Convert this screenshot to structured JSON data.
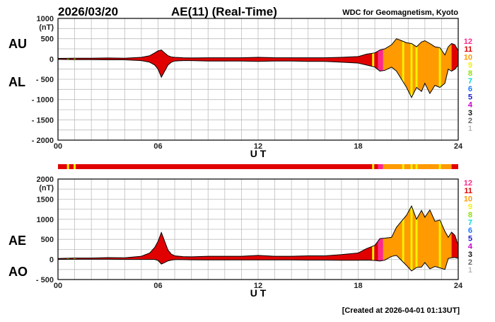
{
  "header": {
    "date": "2026/03/20",
    "title": "AE(11) (Real-Time)",
    "source": "WDC for Geomagnetism, Kyoto"
  },
  "footer": {
    "created": "[Created at 2026-04-01 01:13UT]"
  },
  "legend_levels": [
    {
      "label": "12",
      "color": "#ff2a8a"
    },
    {
      "label": "11",
      "color": "#e00000"
    },
    {
      "label": "10",
      "color": "#ff9a00"
    },
    {
      "label": "9",
      "color": "#f2f200"
    },
    {
      "label": "8",
      "color": "#8ee000"
    },
    {
      "label": "7",
      "color": "#00d8d8"
    },
    {
      "label": "6",
      "color": "#1a7aff"
    },
    {
      "label": "5",
      "color": "#1a1acc"
    },
    {
      "label": "4",
      "color": "#cc00cc"
    },
    {
      "label": "3",
      "color": "#111111"
    },
    {
      "label": "2",
      "color": "#666666"
    },
    {
      "label": "1",
      "color": "#bbbbbb"
    }
  ],
  "chart_data": [
    {
      "type": "area",
      "panel": "AU/AL",
      "labels": {
        "upper": "AU",
        "lower": "AL",
        "unit": "(nT)"
      },
      "xlabel": "U T",
      "xlim": [
        0,
        24
      ],
      "xticks": [
        "00",
        "06",
        "12",
        "18",
        "24"
      ],
      "ylim": [
        -2000,
        1000
      ],
      "yticks": [
        1000,
        500,
        0,
        -500,
        -1000,
        -1500,
        -2000
      ],
      "grid": true,
      "series": [
        {
          "name": "AU",
          "x": [
            0,
            1,
            2,
            3,
            4,
            5,
            5.5,
            5.8,
            6,
            6.2,
            6.4,
            6.6,
            6.8,
            7,
            7.5,
            8,
            9,
            10,
            11,
            12,
            13,
            14,
            15,
            16,
            17,
            18,
            18.5,
            19,
            19.3,
            19.6,
            20,
            20.3,
            20.6,
            20.9,
            21.2,
            21.5,
            21.8,
            22,
            22.3,
            22.6,
            22.9,
            23.2,
            23.4,
            23.6,
            23.8,
            24
          ],
          "values": [
            15,
            20,
            20,
            25,
            20,
            40,
            80,
            150,
            200,
            220,
            150,
            80,
            50,
            40,
            30,
            25,
            30,
            30,
            30,
            40,
            30,
            30,
            30,
            30,
            40,
            60,
            120,
            150,
            220,
            250,
            350,
            500,
            450,
            400,
            380,
            300,
            420,
            450,
            380,
            300,
            280,
            100,
            300,
            380,
            350,
            200
          ]
        },
        {
          "name": "AL",
          "x": [
            0,
            1,
            2,
            3,
            4,
            5,
            5.5,
            5.8,
            6,
            6.2,
            6.4,
            6.6,
            6.8,
            7,
            7.5,
            8,
            9,
            10,
            11,
            12,
            13,
            14,
            15,
            16,
            17,
            18,
            18.5,
            19,
            19.3,
            19.6,
            20,
            20.3,
            20.6,
            20.9,
            21.2,
            21.5,
            21.8,
            22,
            22.3,
            22.6,
            22.9,
            23.2,
            23.4,
            23.6,
            23.8,
            24
          ],
          "values": [
            -10,
            -15,
            -15,
            -20,
            -20,
            -40,
            -80,
            -150,
            -250,
            -450,
            -300,
            -150,
            -80,
            -50,
            -40,
            -40,
            -50,
            -50,
            -50,
            -60,
            -50,
            -50,
            -60,
            -60,
            -80,
            -100,
            -150,
            -200,
            -300,
            -280,
            -200,
            -300,
            -500,
            -700,
            -950,
            -700,
            -800,
            -600,
            -850,
            -650,
            -700,
            -600,
            -250,
            -300,
            -250,
            -150
          ]
        }
      ]
    },
    {
      "type": "area",
      "panel": "AE/AO",
      "labels": {
        "upper": "AE",
        "lower": "AO",
        "unit": "(nT)"
      },
      "xlabel": "U T",
      "xlim": [
        0,
        24
      ],
      "xticks": [
        "00",
        "06",
        "12",
        "18",
        "24"
      ],
      "ylim": [
        -500,
        2000
      ],
      "yticks": [
        2000,
        1500,
        1000,
        500,
        0,
        -500
      ],
      "grid": true,
      "series": [
        {
          "name": "AE",
          "x": [
            0,
            1,
            2,
            3,
            4,
            5,
            5.5,
            5.8,
            6,
            6.2,
            6.4,
            6.6,
            6.8,
            7,
            7.5,
            8,
            9,
            10,
            11,
            12,
            13,
            14,
            15,
            16,
            17,
            18,
            18.5,
            19,
            19.3,
            19.6,
            20,
            20.3,
            20.6,
            20.9,
            21.2,
            21.5,
            21.8,
            22,
            22.3,
            22.6,
            22.9,
            23.2,
            23.4,
            23.6,
            23.8,
            24
          ],
          "values": [
            25,
            35,
            35,
            45,
            40,
            80,
            160,
            300,
            450,
            670,
            450,
            230,
            130,
            90,
            70,
            65,
            80,
            80,
            80,
            100,
            80,
            80,
            90,
            90,
            120,
            160,
            270,
            350,
            520,
            530,
            550,
            800,
            950,
            1100,
            1330,
            1000,
            1220,
            1050,
            1230,
            950,
            980,
            700,
            550,
            680,
            600,
            350
          ]
        },
        {
          "name": "AO",
          "x": [
            0,
            1,
            2,
            3,
            4,
            5,
            5.5,
            5.8,
            6,
            6.2,
            6.4,
            6.6,
            6.8,
            7,
            7.5,
            8,
            9,
            10,
            11,
            12,
            13,
            14,
            15,
            16,
            17,
            18,
            18.5,
            19,
            19.3,
            19.6,
            20,
            20.3,
            20.6,
            20.9,
            21.2,
            21.5,
            21.8,
            22,
            22.3,
            22.6,
            22.9,
            23.2,
            23.4,
            23.6,
            23.8,
            24
          ],
          "values": [
            2,
            3,
            3,
            3,
            0,
            0,
            0,
            0,
            -25,
            -115,
            -75,
            -35,
            -15,
            -5,
            -5,
            -8,
            -10,
            -10,
            -10,
            -10,
            -10,
            -10,
            -15,
            -15,
            -20,
            -20,
            -15,
            -25,
            -40,
            -15,
            75,
            100,
            -25,
            -150,
            -285,
            -200,
            -190,
            -75,
            -235,
            -175,
            -210,
            -250,
            25,
            40,
            50,
            25
          ]
        }
      ]
    }
  ],
  "activity_bar": {
    "segments": [
      {
        "from": 0,
        "to": 19.2,
        "level": "11"
      },
      {
        "from": 19.2,
        "to": 19.5,
        "level": "12"
      },
      {
        "from": 19.5,
        "to": 23.6,
        "level": "10"
      },
      {
        "from": 23.6,
        "to": 24,
        "level": "11"
      }
    ],
    "highlights": [
      0.6,
      1.0,
      18.9,
      20.7,
      21.2,
      21.5,
      22.9
    ]
  }
}
